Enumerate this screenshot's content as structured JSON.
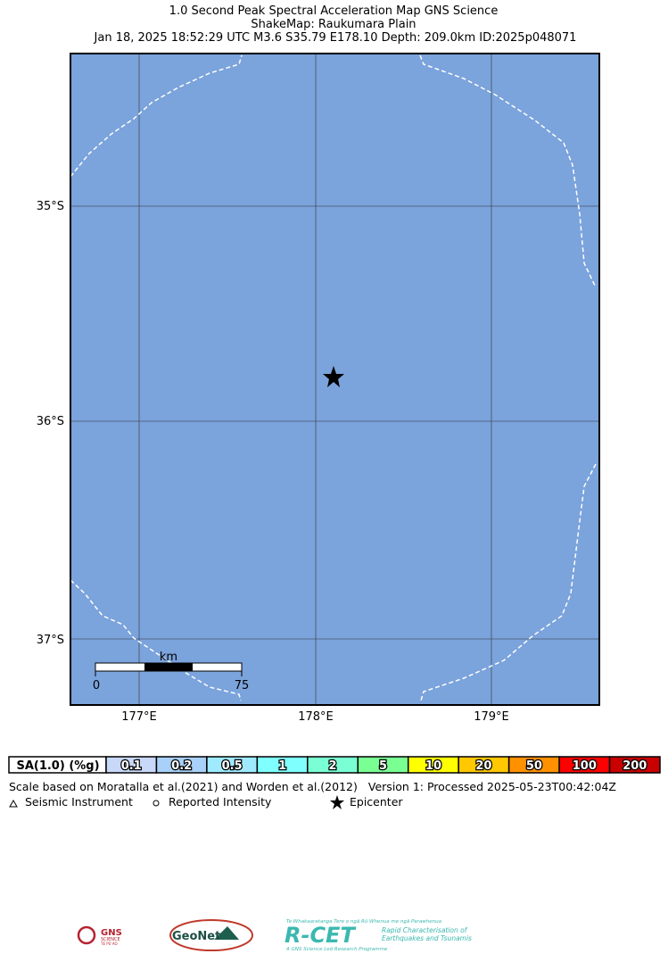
{
  "title": [
    "1.0 Second Peak Spectral Acceleration Map GNS Science",
    "ShakeMap: Raukumara Plain",
    "Jan 18, 2025 18:52:29 UTC M3.6 S35.79 E178.10 Depth: 209.0km ID:2025p048071"
  ],
  "map": {
    "lat_labels": [
      "35°S",
      "36°S",
      "37°S"
    ],
    "lon_labels": [
      "177°E",
      "178°E",
      "179°E"
    ],
    "scale_bar": {
      "unit": "km",
      "labels": [
        "0",
        "75"
      ]
    }
  },
  "legend": {
    "label": "SA(1.0) (%g)",
    "bins": [
      {
        "label": "0.1",
        "color": "#c8d8f8"
      },
      {
        "label": "0.2",
        "color": "#a8d0f8"
      },
      {
        "label": "0.5",
        "color": "#a0eaff"
      },
      {
        "label": "1",
        "color": "#80ffff"
      },
      {
        "label": "2",
        "color": "#7affd4"
      },
      {
        "label": "5",
        "color": "#7aff93"
      },
      {
        "label": "10",
        "color": "#ffff00"
      },
      {
        "label": "20",
        "color": "#ffc800"
      },
      {
        "label": "50",
        "color": "#ff9100"
      },
      {
        "label": "100",
        "color": "#ff0000"
      },
      {
        "label": "200",
        "color": "#c80000"
      }
    ]
  },
  "notes": {
    "reference": "Scale based on Moratalla et al.(2021) and Worden et al.(2012)",
    "version": "Version 1: Processed 2025-05-23T00:42:04Z"
  },
  "key": [
    "Seismic Instrument",
    "Reported Intensity",
    "Epicenter"
  ],
  "logos": {
    "gns": [
      "GNS",
      "SCIENCE",
      "TE PŪ AO"
    ],
    "geonet": "GeoNet",
    "rcet": [
      "Te Whakaaratanga Tere o ngā Rū Whenua me ngā Parawhenua",
      "R-CET",
      "Rapid Characterisation of",
      "Earthquakes and Tsunamis",
      "A GNS Science Led Research Programme"
    ]
  }
}
